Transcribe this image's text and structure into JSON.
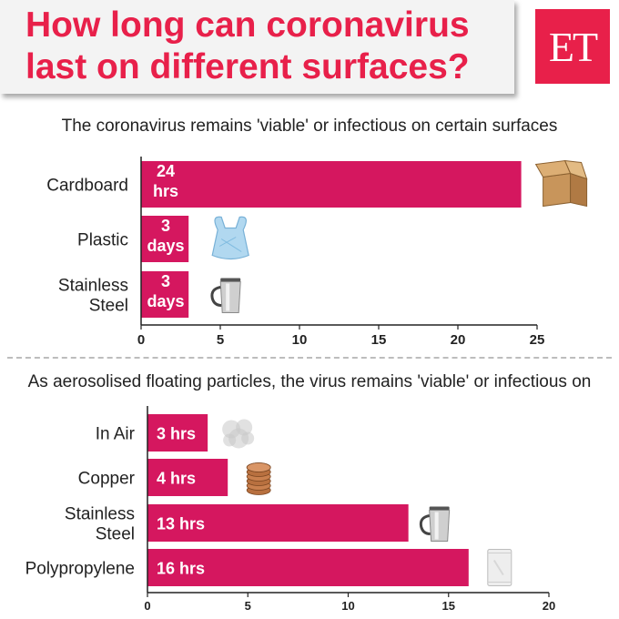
{
  "header": {
    "title_line1": "How long can coronavirus",
    "title_line2": "last on different surfaces?",
    "logo_text": "ET"
  },
  "colors": {
    "accent": "#e8204a",
    "bar": "#d5175f",
    "title_bg": "#f3f3f3"
  },
  "chart_data": [
    {
      "type": "bar",
      "orientation": "horizontal",
      "title": "The coronavirus remains 'viable' or infectious on certain surfaces",
      "categories": [
        "Cardboard",
        "Plastic",
        "Stainless Steel"
      ],
      "values": [
        24,
        3,
        3
      ],
      "data_labels": [
        "24 hrs",
        "3 days",
        "3 days"
      ],
      "icons": [
        "cardboard-box-icon",
        "plastic-bag-icon",
        "steel-mug-icon"
      ],
      "xlim": [
        0,
        25
      ],
      "xticks": [
        0,
        5,
        10,
        15,
        20,
        25
      ],
      "grid": false
    },
    {
      "type": "bar",
      "orientation": "horizontal",
      "title": "As aerosolised floating particles, the virus remains 'viable' or infectious on",
      "categories": [
        "In Air",
        "Copper",
        "Stainless Steel",
        "Polypropylene"
      ],
      "values": [
        3,
        4,
        13,
        16
      ],
      "data_labels": [
        "3 hrs",
        "4 hrs",
        "13 hrs",
        "16 hrs"
      ],
      "icons": [
        "smoke-cloud-icon",
        "coin-stack-icon",
        "steel-mug-icon",
        "polypropylene-bag-icon"
      ],
      "xlim": [
        0,
        20
      ],
      "xticks": [
        0,
        5,
        10,
        15,
        20
      ],
      "grid": false
    }
  ]
}
